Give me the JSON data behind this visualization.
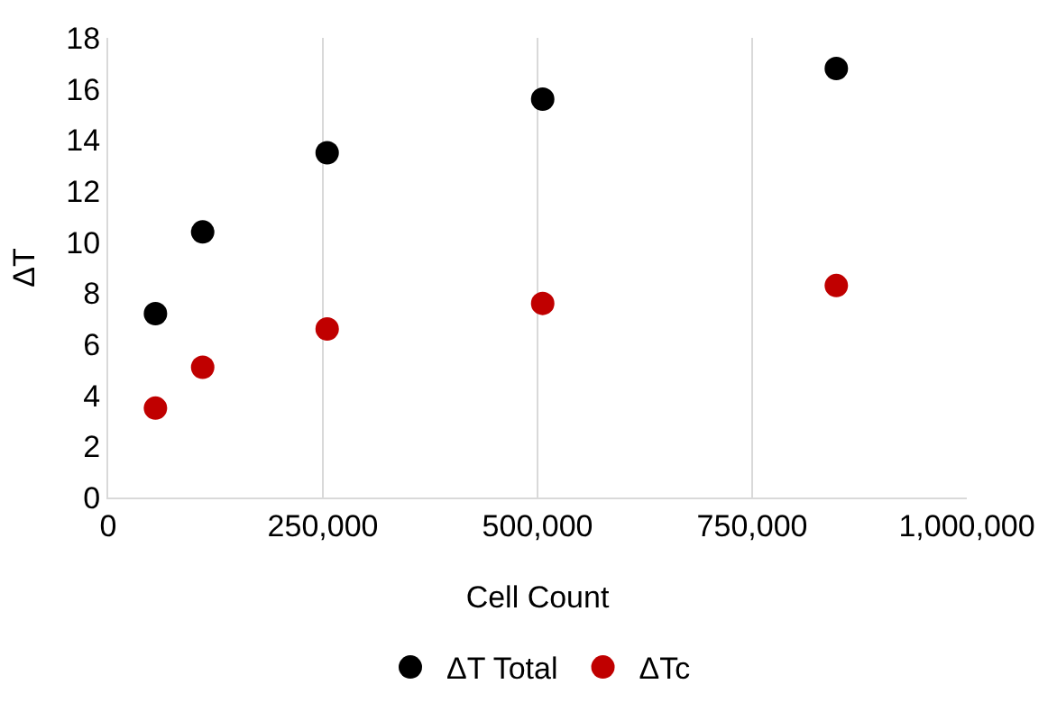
{
  "chart_data": {
    "type": "scatter",
    "xlabel": "Cell Count",
    "ylabel": "ΔT",
    "x": [
      55000,
      110000,
      255000,
      506000,
      848000
    ],
    "series": [
      {
        "name": "ΔT Total",
        "color": "#000000",
        "values": [
          7.2,
          10.4,
          13.5,
          15.6,
          16.8
        ]
      },
      {
        "name": "ΔTc",
        "color": "#c00000",
        "values": [
          3.5,
          5.1,
          6.6,
          7.6,
          8.3
        ]
      }
    ],
    "xlim": [
      0,
      1000000
    ],
    "xticks": [
      0,
      {
        "value": 250000,
        "label": "250,000"
      },
      {
        "value": 500000,
        "label": "500,000"
      },
      {
        "value": 750000,
        "label": "750,000"
      },
      {
        "value": 1000000,
        "label": "1,000,000"
      }
    ],
    "ylim": [
      0,
      18
    ],
    "yticks": [
      0,
      2,
      4,
      6,
      8,
      10,
      12,
      14,
      16,
      18
    ],
    "grid": "x",
    "legend": "bottom",
    "marker": "circle"
  }
}
